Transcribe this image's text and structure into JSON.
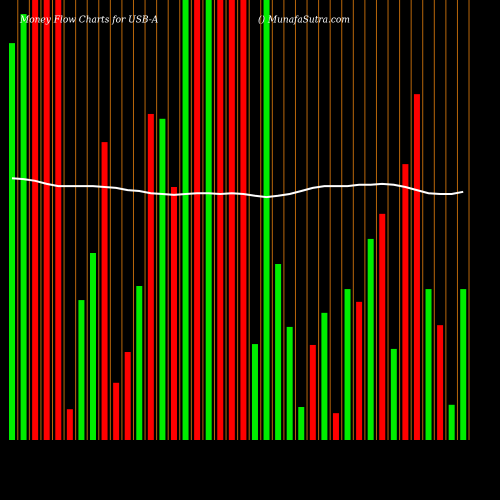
{
  "chart_data": {
    "type": "bar",
    "title": "Money Flow  Charts for USB-A",
    "subtitle": "() MunafaSutra.com",
    "ylim": [
      0,
      100
    ],
    "grid_color": "#b8660b",
    "line_color": "#ffffff",
    "values": [
      90.2,
      96.8,
      100,
      100,
      100,
      7.0,
      31.8,
      42.5,
      67.7,
      13.0,
      20.0,
      35.0,
      74.1,
      73.0,
      57.5,
      100,
      100,
      100,
      100,
      100,
      100,
      21.8,
      100,
      40.0,
      25.7,
      7.5,
      21.6,
      28.9,
      6.1,
      34.3,
      31.4,
      45.7,
      51.4,
      20.7,
      62.7,
      78.6,
      34.3,
      26.1,
      8.0,
      34.3
    ],
    "colors": [
      "#00ee00",
      "#00ee00",
      "#ff0000",
      "#ff0000",
      "#ff0000",
      "#ff0000",
      "#00ee00",
      "#00ee00",
      "#ff0000",
      "#ff0000",
      "#ff0000",
      "#00ee00",
      "#ff0000",
      "#00ee00",
      "#ff0000",
      "#00ee00",
      "#ff0000",
      "#00ee00",
      "#ff0000",
      "#ff0000",
      "#ff0000",
      "#00ee00",
      "#00ee00",
      "#00ee00",
      "#00ee00",
      "#00ee00",
      "#ff0000",
      "#00ee00",
      "#ff0000",
      "#00ee00",
      "#ff0000",
      "#00ee00",
      "#ff0000",
      "#00ee00",
      "#ff0000",
      "#ff0000",
      "#00ee00",
      "#ff0000",
      "#00ee00",
      "#00ee00"
    ],
    "line": [
      59.5,
      59.3,
      58.9,
      58.2,
      57.7,
      57.7,
      57.7,
      57.7,
      57.5,
      57.3,
      56.8,
      56.6,
      56.1,
      55.9,
      55.7,
      55.9,
      56.1,
      56.1,
      55.9,
      56.1,
      55.9,
      55.5,
      55.2,
      55.5,
      55.9,
      56.6,
      57.3,
      57.7,
      57.7,
      57.7,
      58.0,
      58.0,
      58.2,
      58.0,
      57.5,
      56.8,
      56.1,
      55.9,
      55.9,
      56.4
    ]
  }
}
